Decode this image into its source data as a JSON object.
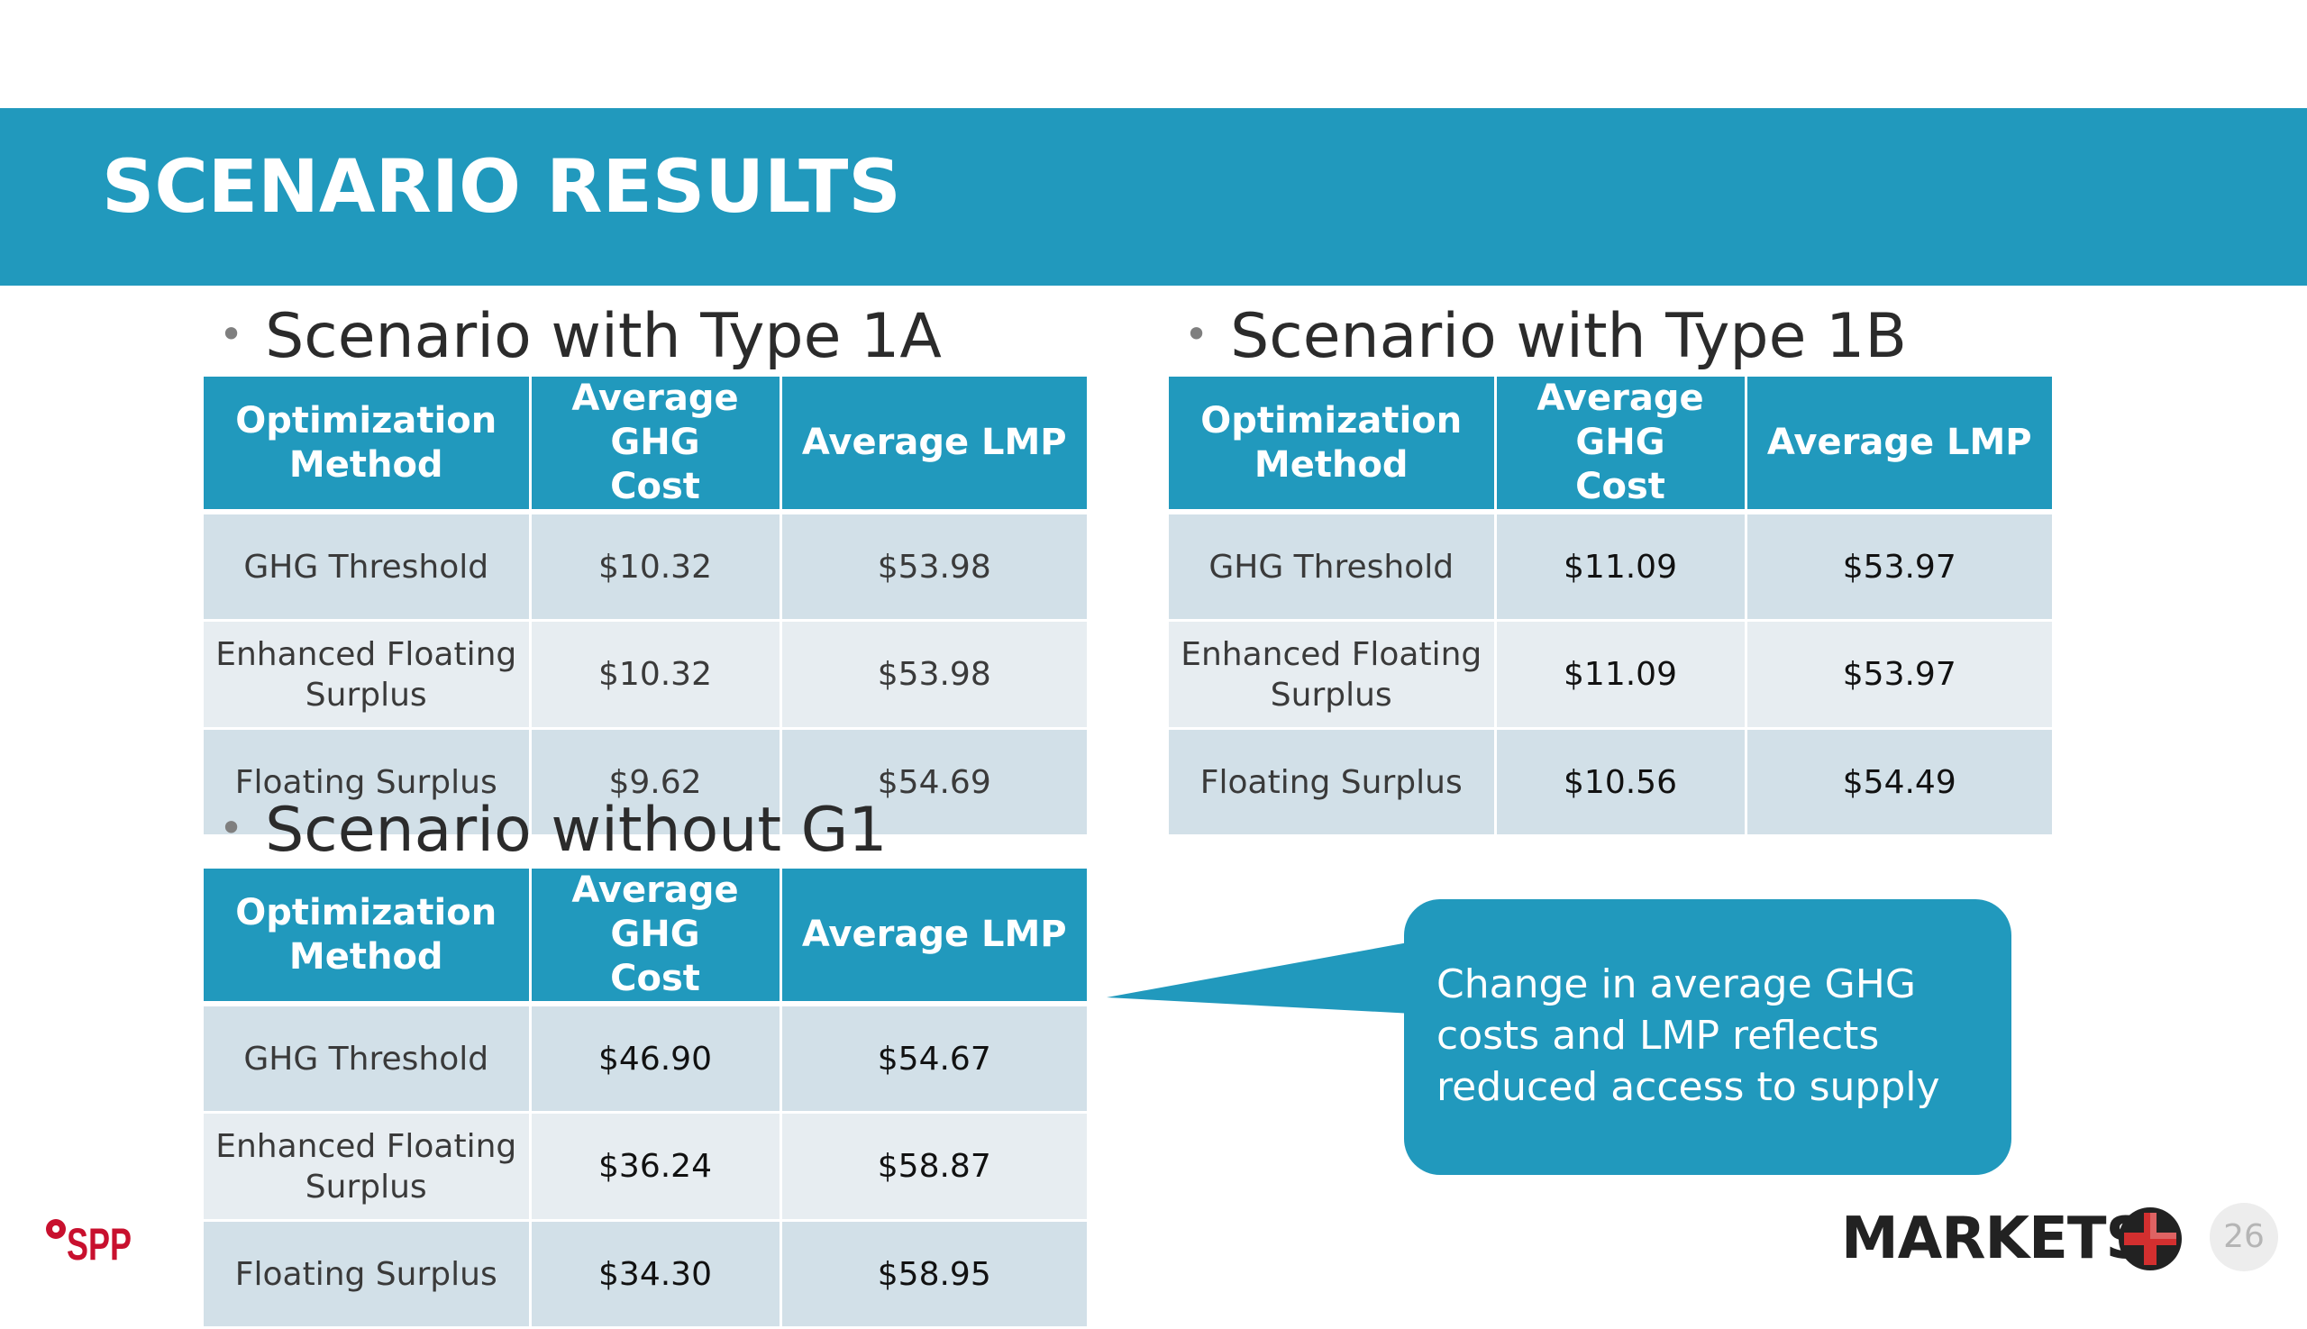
{
  "slide": {
    "title": "SCENARIO RESULTS",
    "page_number": "26"
  },
  "table_headers": {
    "method": [
      "Optimization",
      "Method"
    ],
    "ghg": [
      "Average GHG",
      "Cost"
    ],
    "lmp": "Average LMP"
  },
  "scenarios": [
    {
      "heading": "Scenario with Type 1A",
      "rows": [
        {
          "method": [
            "GHG Threshold"
          ],
          "ghg_cost": "$10.32",
          "lmp": "$53.98"
        },
        {
          "method": [
            "Enhanced Floating",
            "Surplus"
          ],
          "ghg_cost": "$10.32",
          "lmp": "$53.98"
        },
        {
          "method": [
            "Floating Surplus"
          ],
          "ghg_cost": "$9.62",
          "lmp": "$54.69"
        }
      ]
    },
    {
      "heading": "Scenario with Type 1B",
      "rows": [
        {
          "method": [
            "GHG Threshold"
          ],
          "ghg_cost": "$11.09",
          "lmp": "$53.97"
        },
        {
          "method": [
            "Enhanced Floating",
            "Surplus"
          ],
          "ghg_cost": "$11.09",
          "lmp": "$53.97"
        },
        {
          "method": [
            "Floating Surplus"
          ],
          "ghg_cost": "$10.56",
          "lmp": "$54.49"
        }
      ]
    },
    {
      "heading": "Scenario without G1",
      "rows": [
        {
          "method": [
            "GHG Threshold"
          ],
          "ghg_cost": "$46.90",
          "lmp": "$54.67"
        },
        {
          "method": [
            "Enhanced Floating",
            "Surplus"
          ],
          "ghg_cost": "$36.24",
          "lmp": "$58.87"
        },
        {
          "method": [
            "Floating Surplus"
          ],
          "ghg_cost": "$34.30",
          "lmp": "$58.95"
        }
      ]
    }
  ],
  "callout": {
    "lines": [
      "Change in average GHG",
      "costs and LMP reflects",
      "reduced access to supply"
    ]
  },
  "logos": {
    "spp": "SPP",
    "markets": "MARKETS"
  },
  "colors": {
    "brand_blue": "#2199bd",
    "row_odd": "#d2e0e8",
    "row_even": "#e7edf1",
    "spp_red": "#c8102e",
    "plus_red": "#d32f2f"
  }
}
